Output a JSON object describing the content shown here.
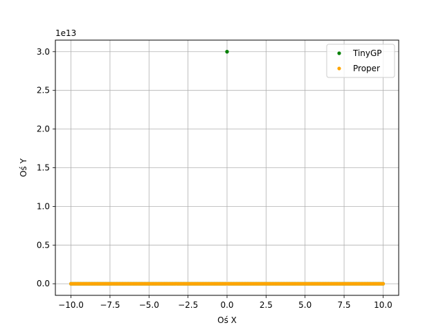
{
  "chart_data": {
    "type": "scatter",
    "title": "",
    "xlabel": "Oś X",
    "ylabel": "Oś Y",
    "offset_text": "1e13",
    "xlim": [
      -11.0,
      11.0
    ],
    "ylim": [
      -0.15,
      3.15
    ],
    "xticks": [
      -10.0,
      -7.5,
      -5.0,
      -2.5,
      0.0,
      2.5,
      5.0,
      7.5,
      10.0
    ],
    "xtick_labels": [
      "−10.0",
      "−7.5",
      "−5.0",
      "−2.5",
      "0.0",
      "2.5",
      "5.0",
      "7.5",
      "10.0"
    ],
    "yticks": [
      0.0,
      0.5,
      1.0,
      1.5,
      2.0,
      2.5,
      3.0
    ],
    "ytick_labels": [
      "0.0",
      "0.5",
      "1.0",
      "1.5",
      "2.0",
      "2.5",
      "3.0"
    ],
    "grid": true,
    "legend_position": "top-right",
    "series": [
      {
        "name": "TinyGP",
        "color": "#008000",
        "points": "spike at x=0 reaching y≈3.0e13; all other points near 0 across x∈[-10,10]",
        "x_range": [
          -10,
          10
        ],
        "count": 201,
        "y_default": 0.0,
        "spikes": [
          {
            "x": 0.0,
            "y": 3.0
          }
        ]
      },
      {
        "name": "Proper",
        "color": "#FFA500",
        "x_range": [
          -10,
          10
        ],
        "count": 201,
        "y_default": 0.0,
        "spikes": []
      }
    ]
  }
}
